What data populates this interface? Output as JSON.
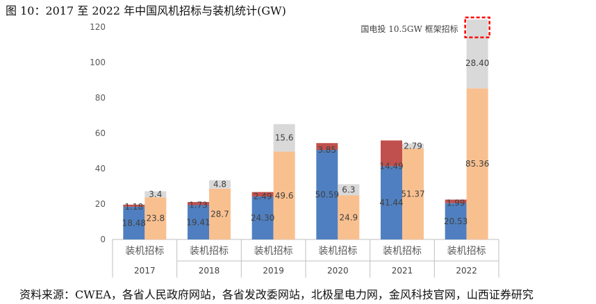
{
  "title": "图 10：2017 至 2022 年中国风机招标与装机统计(GW)",
  "source": "资料来源：CWEA，各省人民政府网站，各省发改委网站，北极星电力网，金风科技官网，山西证券研究",
  "chart_data": {
    "type": "bar",
    "years": [
      "2017",
      "2018",
      "2019",
      "2020",
      "2021",
      "2022"
    ],
    "bar_category_label": "装机招标",
    "ylim": [
      0,
      120
    ],
    "y_ticks": [
      0,
      20,
      40,
      60,
      80,
      100,
      120
    ],
    "installation": {
      "base": [
        18.48,
        19.41,
        24.3,
        50.59,
        41.44,
        20.53
      ],
      "base_labels": [
        "18.48",
        "19.41",
        "24.30",
        "50.59",
        "41.44",
        "20.53"
      ],
      "top": [
        1.18,
        1.73,
        2.49,
        3.85,
        14.49,
        1.99
      ],
      "top_labels": [
        "1.18",
        "1.73",
        "2.49",
        "3.85",
        "14.49",
        "1.99"
      ]
    },
    "tender": {
      "base": [
        23.8,
        28.7,
        49.6,
        24.9,
        51.37,
        85.36
      ],
      "base_labels": [
        "23.8",
        "28.7",
        "49.6",
        "24.9",
        "51.37",
        "85.36"
      ],
      "top": [
        3.4,
        4.8,
        15.6,
        6.3,
        2.79,
        28.4
      ],
      "top_labels": [
        "3.4",
        "4.8",
        "15.6",
        "6.3",
        "2.79",
        "28.40"
      ]
    },
    "extra_2022": {
      "value": 10.5
    },
    "annotation": "国电投 10.5GW 框架招标",
    "colors": {
      "install_base": "#4f7fc0",
      "install_top": "#c0504d",
      "tender_base": "#f9c08f",
      "tender_top": "#d9d9d9",
      "highlight_border": "#ff0000"
    },
    "grid": false
  }
}
